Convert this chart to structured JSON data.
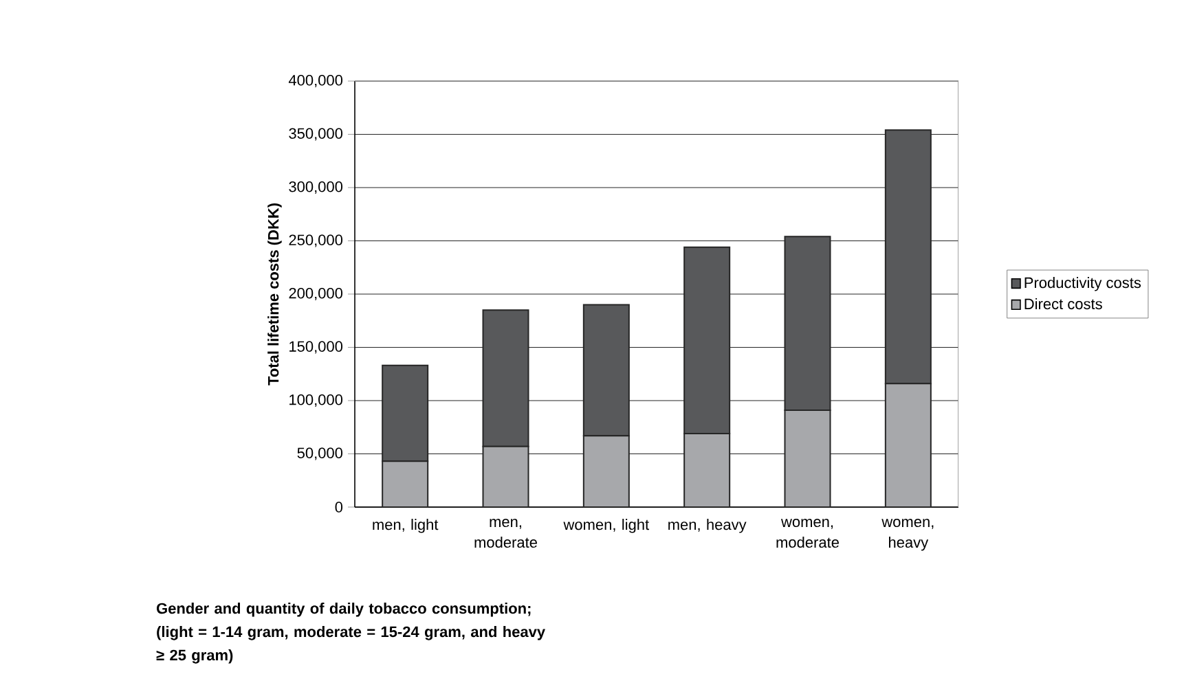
{
  "chart_data": {
    "type": "bar",
    "stacked": true,
    "categories": [
      "men, light",
      "men, moderate",
      "women, light",
      "men, heavy",
      "women, moderate",
      "women, heavy"
    ],
    "series": [
      {
        "name": "Direct costs",
        "color": "#a7a8ab",
        "values": [
          43000,
          57000,
          67000,
          69000,
          91000,
          116000
        ]
      },
      {
        "name": "Productivity costs",
        "color": "#58595b",
        "values": [
          90000,
          128000,
          123000,
          175000,
          163000,
          238000
        ]
      }
    ],
    "xlabel": "Gender and quantity of daily tobacco consumption; (light = 1-14 gram, moderate = 15-24 gram, and heavy ≥ 25 gram)",
    "ylabel": "Total lifetime costs (DKK)",
    "ylim": [
      0,
      400000
    ],
    "yticks": [
      {
        "value": 0,
        "label": "0"
      },
      {
        "value": 50000,
        "label": "50,000"
      },
      {
        "value": 100000,
        "label": "100,000"
      },
      {
        "value": 150000,
        "label": "150,000"
      },
      {
        "value": 200000,
        "label": "200,000"
      },
      {
        "value": 250000,
        "label": "250,000"
      },
      {
        "value": 300000,
        "label": "300,000"
      },
      {
        "value": 350000,
        "label": "350,000"
      },
      {
        "value": 400000,
        "label": "400,000"
      }
    ],
    "grid": "y",
    "legend": "right"
  }
}
